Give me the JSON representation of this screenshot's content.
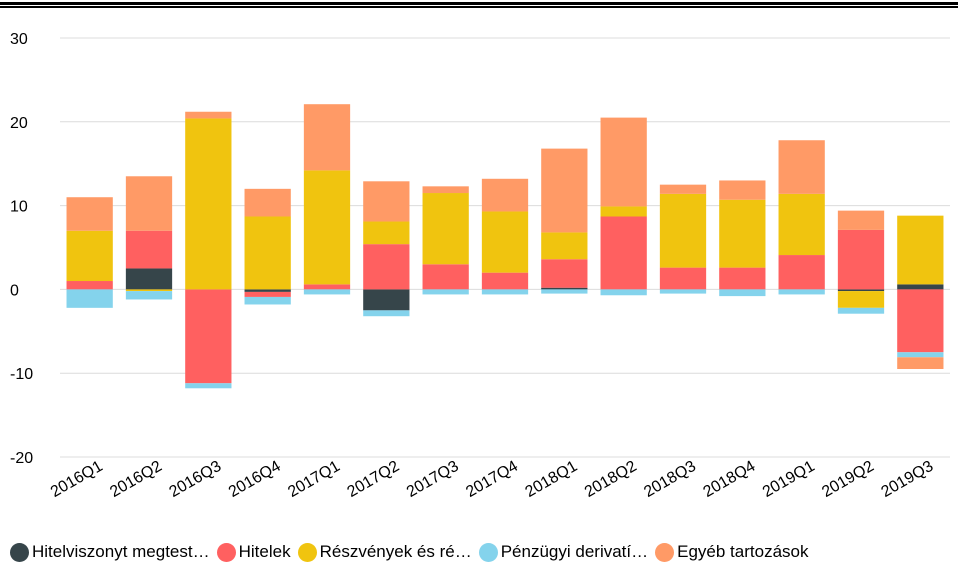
{
  "chart_data": {
    "type": "bar",
    "stacked": true,
    "categories": [
      "2016Q1",
      "2016Q2",
      "2016Q3",
      "2016Q4",
      "2017Q1",
      "2017Q2",
      "2017Q3",
      "2017Q4",
      "2018Q1",
      "2018Q2",
      "2018Q3",
      "2018Q4",
      "2019Q1",
      "2019Q2",
      "2019Q3"
    ],
    "ylim": [
      -20,
      30
    ],
    "yticks": [
      30,
      20,
      10,
      0,
      -10,
      -20
    ],
    "grid": true,
    "legend_position": "bottom",
    "series": [
      {
        "name": "Hitelviszonyt megtest…",
        "color": "#36454a",
        "values": [
          0,
          2.5,
          0,
          -0.3,
          0,
          -2.5,
          0,
          0,
          0.2,
          0,
          0,
          0,
          0,
          -0.2,
          0.6
        ]
      },
      {
        "name": "Hitelek",
        "color": "#ff6060",
        "values": [
          1,
          4.5,
          -11.2,
          -0.6,
          0.6,
          5.4,
          3,
          2,
          3.4,
          8.7,
          2.6,
          2.6,
          4.1,
          7.1,
          -7.5
        ]
      },
      {
        "name": "Részvények és ré…",
        "color": "#f0c40f",
        "values": [
          6,
          -0.2,
          20.4,
          8.7,
          13.6,
          2.7,
          8.5,
          7.3,
          3.2,
          1.2,
          8.8,
          8.1,
          7.3,
          -2,
          8.2
        ]
      },
      {
        "name": "Pénzügyi derivatí…",
        "color": "#84d3ec",
        "values": [
          -2.2,
          -1,
          -0.6,
          -0.9,
          -0.6,
          -0.7,
          -0.6,
          -0.6,
          -0.5,
          -0.7,
          -0.5,
          -0.8,
          -0.6,
          -0.7,
          -0.6
        ]
      },
      {
        "name": "Egyéb tartozások",
        "color": "#ff9a66",
        "values": [
          4,
          6.5,
          0.8,
          3.3,
          7.9,
          4.8,
          0.8,
          3.9,
          10,
          10.6,
          1.1,
          2.3,
          6.4,
          2.3,
          -1.4
        ]
      }
    ]
  }
}
